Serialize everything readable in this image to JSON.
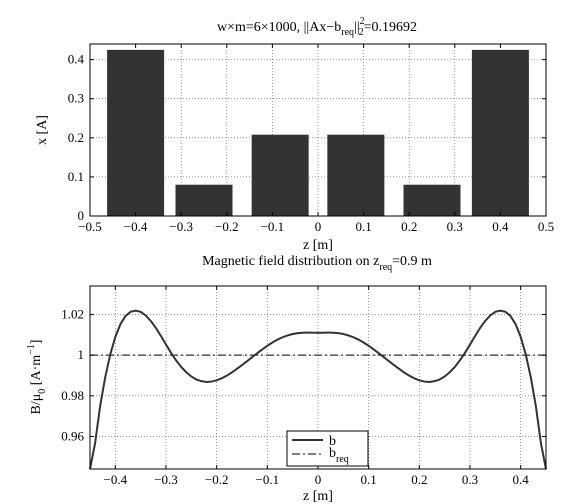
{
  "chart_data": [
    {
      "type": "bar",
      "title_parts": {
        "pre": "w×m=6×1000, ||Ax−b",
        "req": "req",
        "norm_close": "||",
        "sup": "2",
        "sub2": "2",
        "post": "=0.19692"
      },
      "xlabel": "z [m]",
      "ylabel": "x [A]",
      "x": [
        -0.4,
        -0.25,
        -0.083,
        0.083,
        0.25,
        0.4
      ],
      "values": [
        0.425,
        0.08,
        0.208,
        0.208,
        0.08,
        0.425
      ],
      "bar_width": 0.125,
      "xlim": [
        -0.5,
        0.5
      ],
      "ylim": [
        0,
        0.44
      ],
      "xticks": [
        -0.5,
        -0.4,
        -0.3,
        -0.2,
        -0.1,
        0,
        0.1,
        0.2,
        0.3,
        0.4,
        0.5
      ],
      "xtick_labels": [
        "−0.5",
        "−0.4",
        "−0.3",
        "−0.2",
        "−0.1",
        "0",
        "0.1",
        "0.2",
        "0.3",
        "0.4",
        "0.5"
      ],
      "yticks": [
        0,
        0.1,
        0.2,
        0.3,
        0.4
      ],
      "ytick_labels": [
        "0",
        "0.1",
        "0.2",
        "0.3",
        "0.4"
      ],
      "grid": true,
      "bar_color": "#333333"
    },
    {
      "type": "line",
      "title_parts": {
        "pre": "Magnetic field distribution on z",
        "sub": "req",
        "post": "=0.9 m"
      },
      "xlabel": "z [m]",
      "ylabel_parts": {
        "pre": "B/μ",
        "sub": "0",
        "mid": " [A·m",
        "sup": "−1",
        "post": "]"
      },
      "xlim": [
        -0.45,
        0.45
      ],
      "ylim": [
        0.944,
        1.034
      ],
      "xticks": [
        -0.4,
        -0.3,
        -0.2,
        -0.1,
        0,
        0.1,
        0.2,
        0.3,
        0.4
      ],
      "xtick_labels": [
        "−0.4",
        "−0.3",
        "−0.2",
        "−0.1",
        "0",
        "0.1",
        "0.2",
        "0.3",
        "0.4"
      ],
      "yticks": [
        0.96,
        0.98,
        1.0,
        1.02
      ],
      "ytick_labels": [
        "0.96",
        "0.98",
        "1",
        "1.02"
      ],
      "grid": true,
      "series": [
        {
          "name": "b",
          "style": "solid",
          "color": "#333333",
          "x": [
            -0.45,
            -0.44,
            -0.43,
            -0.42,
            -0.41,
            -0.4,
            -0.39,
            -0.38,
            -0.37,
            -0.36,
            -0.35,
            -0.34,
            -0.33,
            -0.32,
            -0.31,
            -0.3,
            -0.29,
            -0.28,
            -0.27,
            -0.26,
            -0.25,
            -0.24,
            -0.23,
            -0.22,
            -0.21,
            -0.2,
            -0.19,
            -0.18,
            -0.17,
            -0.16,
            -0.15,
            -0.14,
            -0.13,
            -0.12,
            -0.11,
            -0.1,
            -0.09,
            -0.08,
            -0.07,
            -0.06,
            -0.05,
            -0.04,
            -0.03,
            -0.02,
            -0.01,
            0,
            0.01,
            0.02,
            0.03,
            0.04,
            0.05,
            0.06,
            0.07,
            0.08,
            0.09,
            0.1,
            0.11,
            0.12,
            0.13,
            0.14,
            0.15,
            0.16,
            0.17,
            0.18,
            0.19,
            0.2,
            0.21,
            0.22,
            0.23,
            0.24,
            0.25,
            0.26,
            0.27,
            0.28,
            0.29,
            0.3,
            0.31,
            0.32,
            0.33,
            0.34,
            0.35,
            0.36,
            0.37,
            0.38,
            0.39,
            0.4,
            0.41,
            0.42,
            0.43,
            0.44,
            0.45
          ],
          "y": [
            0.944,
            0.9566,
            0.9749,
            0.9891,
            1.0004,
            1.009,
            1.0152,
            1.0192,
            1.0213,
            1.0219,
            1.0213,
            1.0195,
            1.0168,
            1.0134,
            1.0094,
            1.0052,
            1.0011,
            0.9974,
            0.9942,
            0.9916,
            0.9895,
            0.988,
            0.9872,
            0.9868,
            0.987,
            0.9876,
            0.9886,
            0.9899,
            0.9915,
            0.9933,
            0.9951,
            0.997,
            0.999,
            1.0009,
            1.0028,
            1.0046,
            1.0062,
            1.0076,
            1.0088,
            1.0097,
            1.0104,
            1.0108,
            1.011,
            1.0111,
            1.011,
            1.011,
            1.011,
            1.0111,
            1.011,
            1.0108,
            1.0104,
            1.0097,
            1.0088,
            1.0076,
            1.0062,
            1.0046,
            1.0028,
            1.0009,
            0.999,
            0.997,
            0.9951,
            0.9933,
            0.9915,
            0.9899,
            0.9886,
            0.9876,
            0.987,
            0.9868,
            0.9872,
            0.988,
            0.9895,
            0.9916,
            0.9942,
            0.9974,
            1.0011,
            1.0052,
            1.0094,
            1.0134,
            1.0168,
            1.0195,
            1.0213,
            1.0219,
            1.0213,
            1.0192,
            1.0152,
            1.009,
            1.0004,
            0.9891,
            0.9749,
            0.9566,
            0.944
          ]
        },
        {
          "name": "b",
          "name_sub": "req",
          "style": "dashdot",
          "color": "#333333",
          "x": [
            -0.45,
            0.45
          ],
          "y": [
            1.0,
            1.0
          ]
        }
      ],
      "legend": "lower-center"
    }
  ]
}
